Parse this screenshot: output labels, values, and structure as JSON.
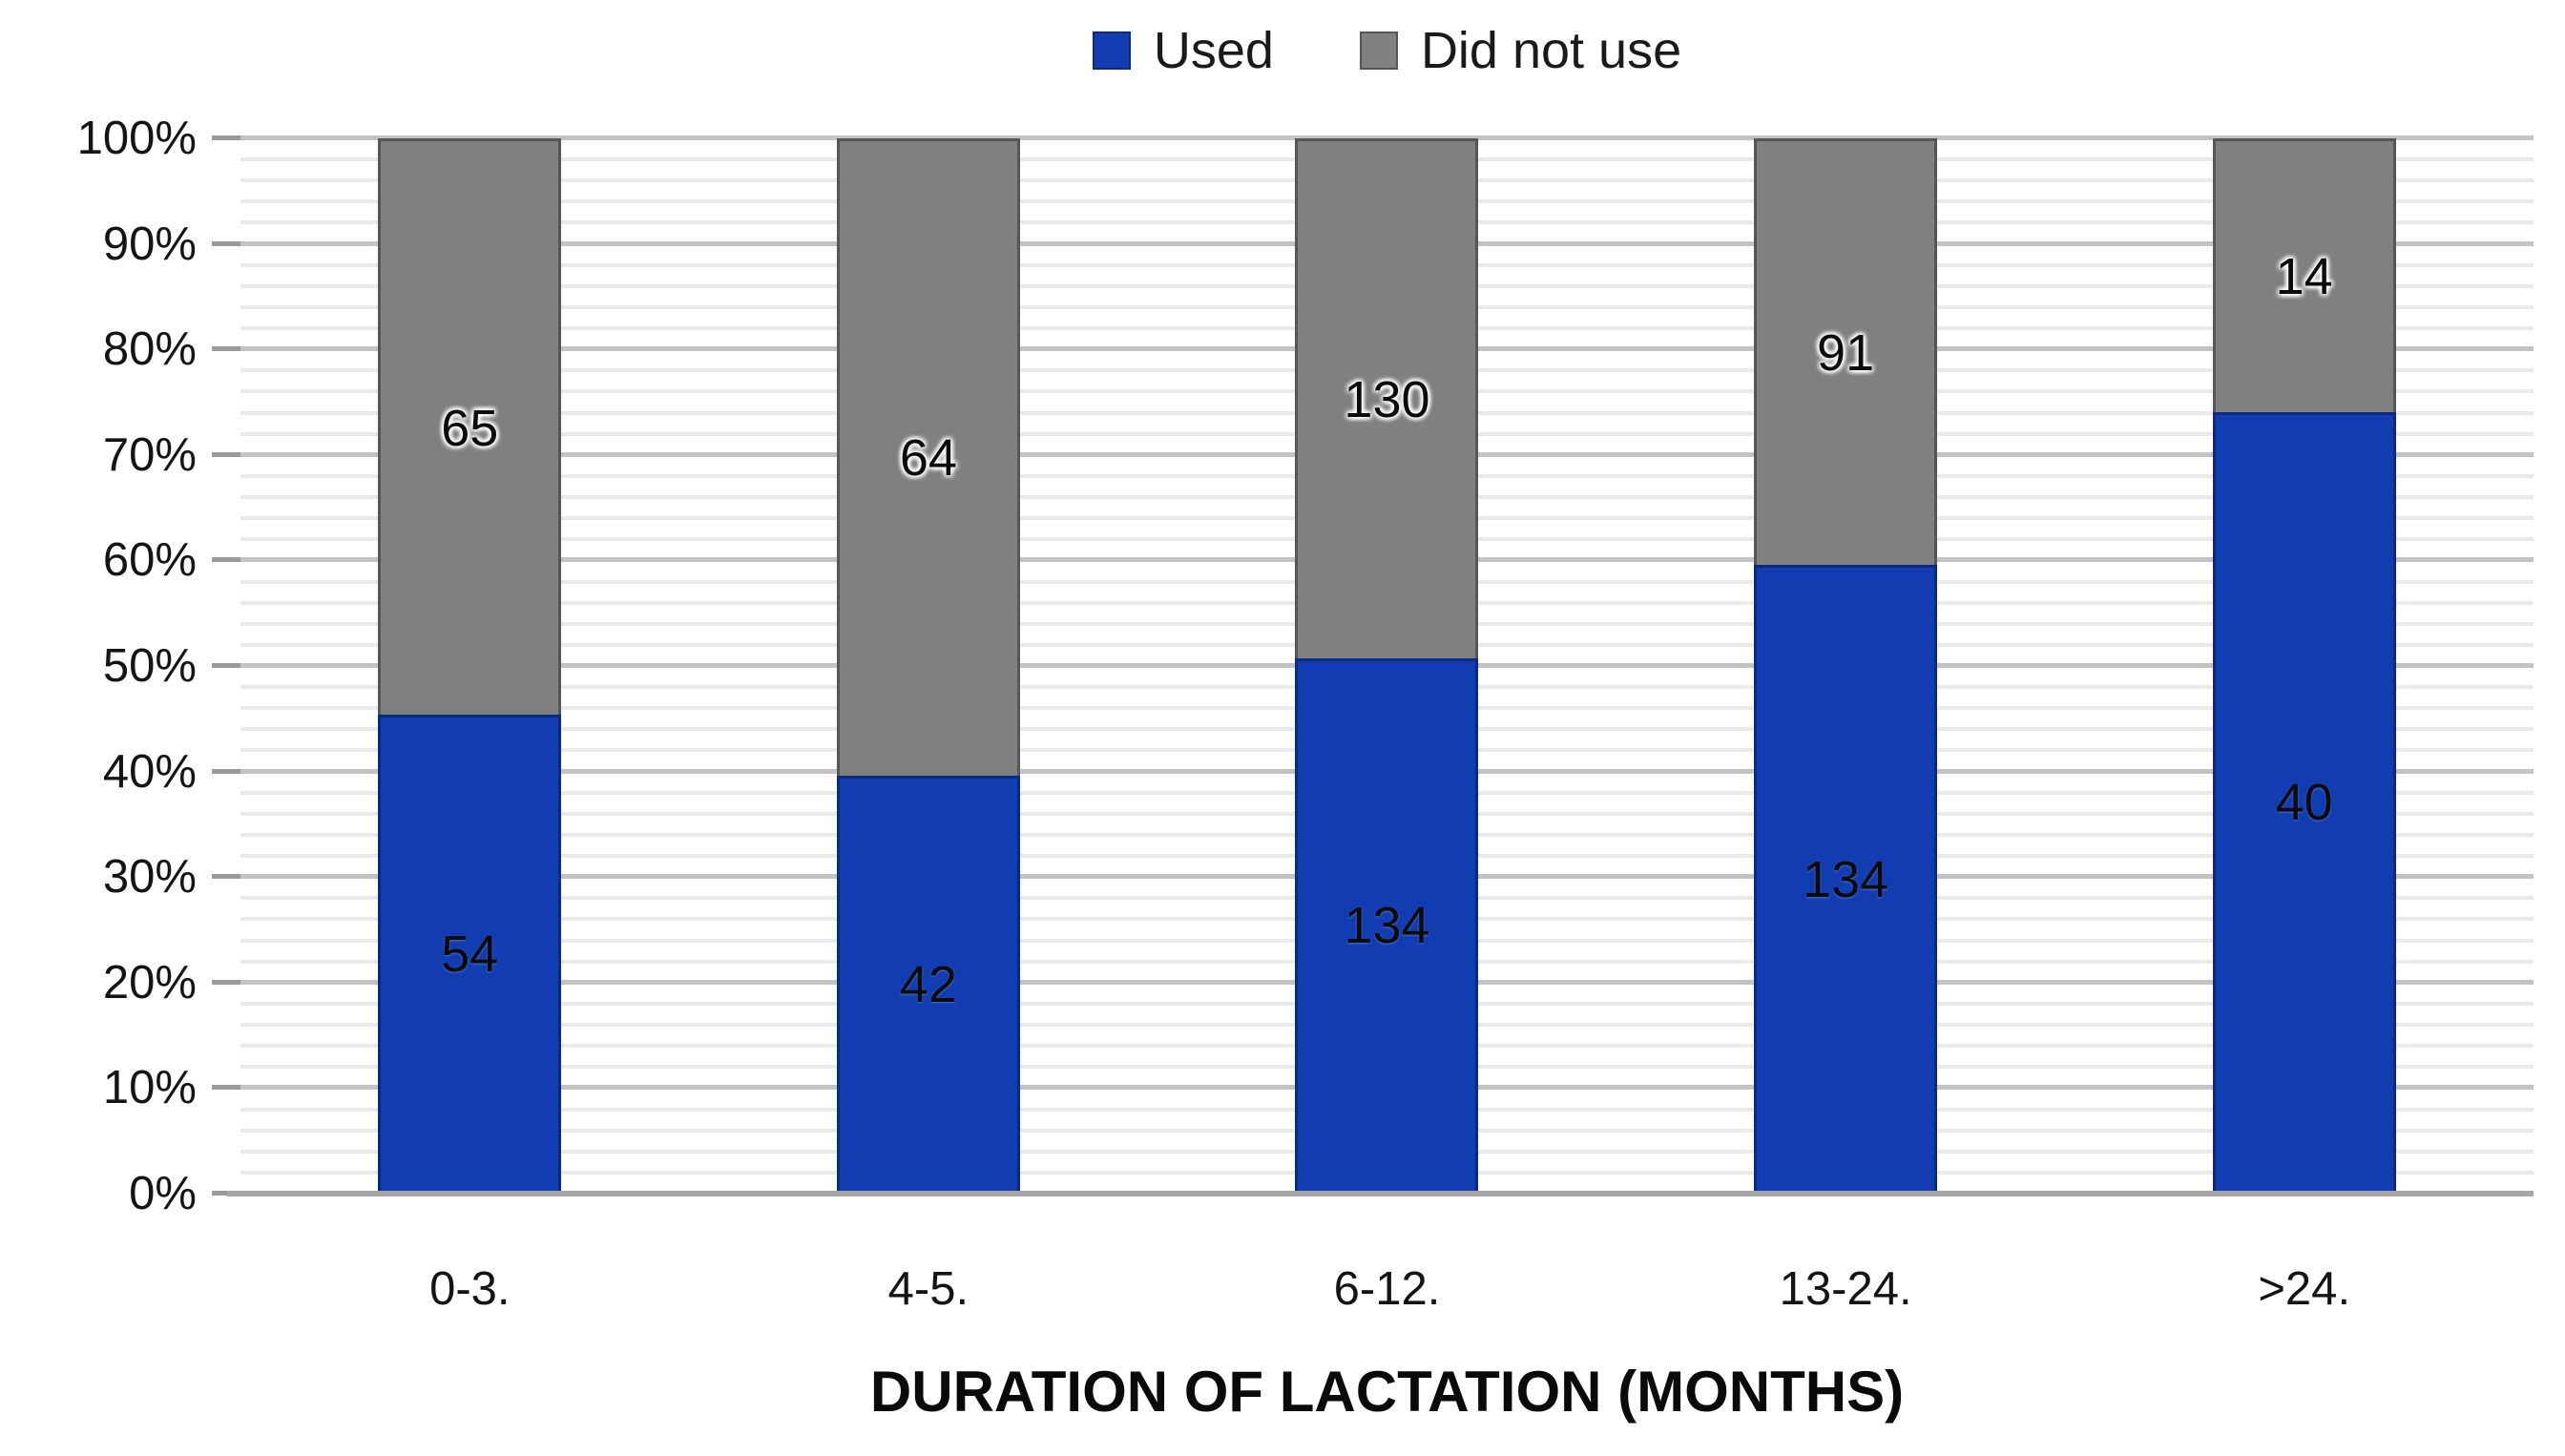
{
  "chart_data": {
    "type": "bar",
    "subtype": "stacked-100-percent",
    "title": "",
    "xlabel": "DURATION OF LACTATION (MONTHS)",
    "ylabel": "",
    "categories": [
      "0-3.",
      "4-5.",
      "6-12.",
      "13-24.",
      ">24."
    ],
    "series": [
      {
        "name": "Used",
        "color": "#123DB2",
        "border_color": "#0A2B80",
        "values": [
          54,
          42,
          134,
          134,
          40
        ]
      },
      {
        "name": "Did not use",
        "color": "#808080",
        "border_color": "#565656",
        "values": [
          65,
          64,
          130,
          91,
          14
        ]
      }
    ],
    "used_percent_by_category": [
      45.4,
      39.6,
      50.8,
      59.6,
      74.1
    ],
    "ylim": [
      0,
      100
    ],
    "y_tick_labels": [
      "0%",
      "10%",
      "20%",
      "30%",
      "40%",
      "50%",
      "60%",
      "70%",
      "80%",
      "90%",
      "100%"
    ],
    "gridlines": {
      "major_interval_pct": 10,
      "minor_interval_pct": 2,
      "major_color": "#C3C3C3",
      "minor_color": "#EAEAEA",
      "axis_line_color": "#A6A6A6"
    },
    "legend_position": "top-center"
  }
}
